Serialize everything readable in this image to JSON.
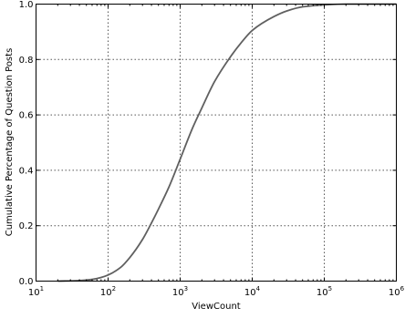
{
  "chart_data": {
    "type": "line",
    "title": "",
    "xlabel": "ViewCount",
    "ylabel": "Cumulative Percentage of Question Posts",
    "x_scale": "log",
    "xlim": [
      10,
      1000000
    ],
    "ylim": [
      0.0,
      1.0
    ],
    "x_ticks": [
      10,
      100,
      1000,
      10000,
      100000,
      1000000
    ],
    "x_tick_labels": [
      {
        "base": "10",
        "exp": "1"
      },
      {
        "base": "10",
        "exp": "2"
      },
      {
        "base": "10",
        "exp": "3"
      },
      {
        "base": "10",
        "exp": "4"
      },
      {
        "base": "10",
        "exp": "5"
      },
      {
        "base": "10",
        "exp": "6"
      }
    ],
    "y_ticks": [
      0.0,
      0.2,
      0.4,
      0.6,
      0.8,
      1.0
    ],
    "y_tick_labels": [
      "0.0",
      "0.2",
      "0.4",
      "0.6",
      "0.8",
      "1.0"
    ],
    "grid": true,
    "series": [
      {
        "color": "#606060",
        "x": [
          20,
          40,
          60,
          80,
          100,
          150,
          200,
          300,
          400,
          500,
          700,
          1000,
          1500,
          2000,
          3000,
          5000,
          7000,
          10000,
          20000,
          30000,
          50000,
          100000,
          200000,
          1000000
        ],
        "y": [
          0.0,
          0.002,
          0.006,
          0.013,
          0.022,
          0.05,
          0.085,
          0.15,
          0.21,
          0.26,
          0.34,
          0.44,
          0.555,
          0.625,
          0.72,
          0.81,
          0.86,
          0.905,
          0.955,
          0.975,
          0.99,
          0.997,
          1.0,
          1.0
        ]
      }
    ]
  }
}
